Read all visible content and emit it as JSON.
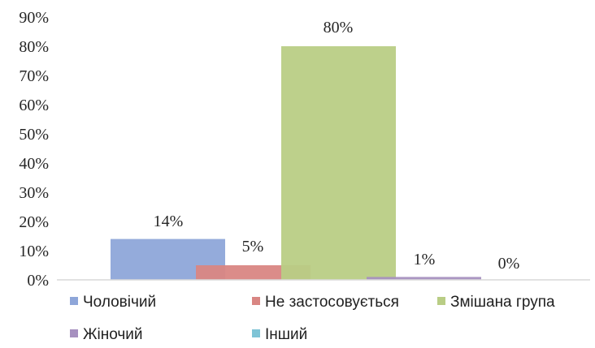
{
  "chart_data": {
    "type": "bar",
    "categories": [
      "Чоловічий",
      "Не застосовується",
      "Змішана група",
      "Жіночий",
      "Інший"
    ],
    "values": [
      14,
      5,
      80,
      1,
      0
    ],
    "value_labels": [
      "14%",
      "5%",
      "80%",
      "1%",
      "0%"
    ],
    "colors": [
      "#8ea6d9",
      "#d98683",
      "#b9cd85",
      "#a690bf",
      "#7fc4d6"
    ],
    "opacity": 0.95,
    "ylim": [
      0,
      90
    ],
    "yticks": [
      0,
      10,
      20,
      30,
      40,
      50,
      60,
      70,
      80,
      90
    ],
    "ytick_labels": [
      "0%",
      "10%",
      "20%",
      "30%",
      "40%",
      "50%",
      "60%",
      "70%",
      "80%",
      "90%"
    ],
    "grid": false,
    "legend": "bottom",
    "legend_items": [
      {
        "label": "Чоловічий",
        "color": "#8ea6d9"
      },
      {
        "label": "Не застосовується",
        "color": "#d98683"
      },
      {
        "label": "Змішана група",
        "color": "#b9cd85"
      },
      {
        "label": "Жіночий",
        "color": "#a690bf"
      },
      {
        "label": "Інший",
        "color": "#7fc4d6"
      }
    ]
  }
}
